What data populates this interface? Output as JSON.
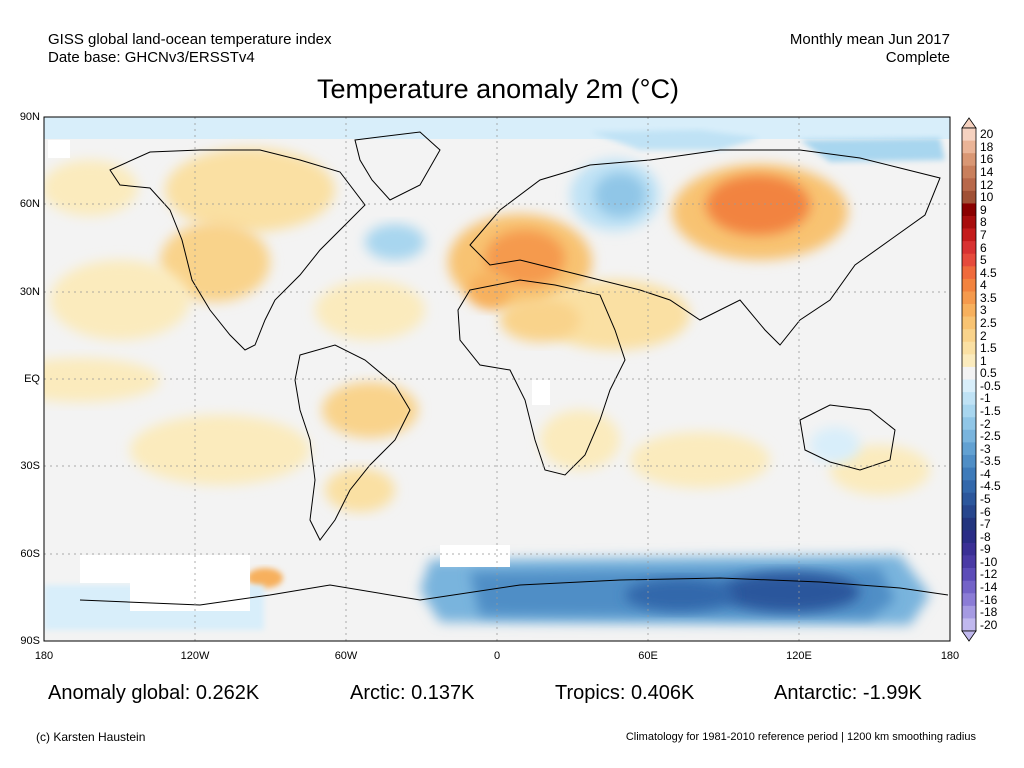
{
  "header": {
    "source_line1": "GISS global land-ocean temperature index",
    "source_line2": "Date base: GHCNv3/ERSSTv4",
    "period_line1": "Monthly mean Jun 2017",
    "period_line2": "Complete"
  },
  "map": {
    "title": "Temperature anomaly 2m (°C)",
    "lat_labels": [
      "90N",
      "60N",
      "30N",
      "EQ",
      "30S",
      "60S",
      "90S"
    ],
    "lon_labels": [
      "180",
      "120W",
      "60W",
      "0",
      "60E",
      "120E",
      "180"
    ]
  },
  "colorbar": {
    "labels": [
      "20",
      "18",
      "16",
      "14",
      "12",
      "10",
      "9",
      "8",
      "7",
      "6",
      "5",
      "4.5",
      "4",
      "3.5",
      "3",
      "2.5",
      "2",
      "1.5",
      "1",
      "0.5",
      "-0.5",
      "-1",
      "-1.5",
      "-2",
      "-2.5",
      "-3",
      "-3.5",
      "-4",
      "-4.5",
      "-5",
      "-6",
      "-7",
      "-8",
      "-9",
      "-10",
      "-12",
      "-14",
      "-16",
      "-18",
      "-20"
    ],
    "colors": [
      "#f6d2c0",
      "#eab497",
      "#d99774",
      "#c97f5c",
      "#b8684a",
      "#a05035",
      "#8a0000",
      "#a80d0d",
      "#c41b1b",
      "#d83232",
      "#e64a3c",
      "#ef6a3c",
      "#f2833f",
      "#f59a4d",
      "#f7b05d",
      "#f8c372",
      "#f9d38b",
      "#fae0a3",
      "#fbebbd",
      "#f3f3f3",
      "#d8eefa",
      "#bfe2f5",
      "#a8d6ef",
      "#90c6e7",
      "#79b4dd",
      "#62a1d2",
      "#4f8ec6",
      "#3e7bba",
      "#3368ab",
      "#2c579c",
      "#27468d",
      "#23357e",
      "#2a2c86",
      "#3a2f95",
      "#4a3aa5",
      "#5c4cb8",
      "#7363c8",
      "#8b7cd6",
      "#a59ae2",
      "#c0b8ee"
    ]
  },
  "stats": {
    "global": "Anomaly global: 0.262K",
    "arctic": "Arctic: 0.137K",
    "tropics": "Tropics: 0.406K",
    "antarctic": "Antarctic: -1.99K"
  },
  "footer": {
    "credit": "(c) Karsten Haustein",
    "note": "Climatology for 1981-2010 reference period | 1200 km smoothing radius"
  }
}
